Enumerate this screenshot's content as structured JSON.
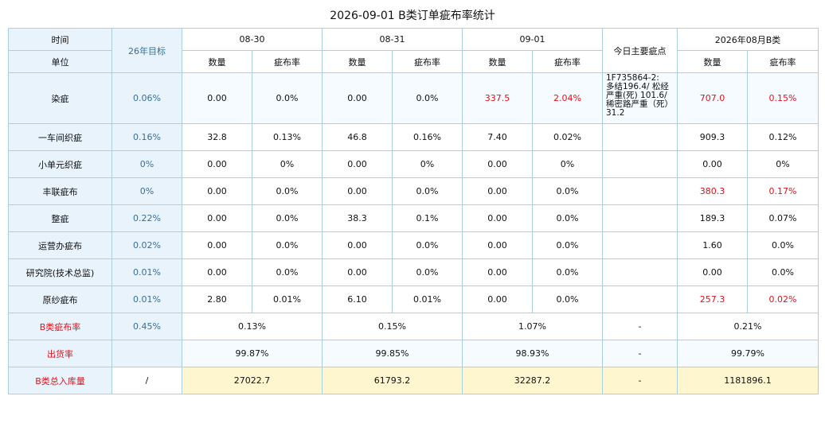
{
  "title": "2026-09-01 B类订单疵布率统计",
  "header": {
    "time": "时间",
    "unit": "单位",
    "target": "26年目标",
    "dates": [
      "08-30",
      "08-31",
      "09-01"
    ],
    "main_defects": "今日主要疵点",
    "month": "2026年08月B类",
    "qty": "数量",
    "rate": "疵布率"
  },
  "rows": [
    {
      "name": "染疵",
      "target": "0.06%",
      "d1q": "0.00",
      "d1r": "0.0%",
      "d2q": "0.00",
      "d2r": "0.0%",
      "d3q": "337.5",
      "d3r": "2.04%",
      "defects": "1F735864-2:\n多结196.4/ 松经\n严重(死) 101.6/\n稀密路严重（死）\n31.2",
      "mq": "707.0",
      "mr": "0.15%"
    },
    {
      "name": "一车间织疵",
      "target": "0.16%",
      "d1q": "32.8",
      "d1r": "0.13%",
      "d2q": "46.8",
      "d2r": "0.16%",
      "d3q": "7.40",
      "d3r": "0.02%",
      "defects": "",
      "mq": "909.3",
      "mr": "0.12%"
    },
    {
      "name": "小单元织疵",
      "target": "0%",
      "d1q": "0.00",
      "d1r": "0%",
      "d2q": "0.00",
      "d2r": "0%",
      "d3q": "0.00",
      "d3r": "0%",
      "defects": "",
      "mq": "0.00",
      "mr": "0%"
    },
    {
      "name": "丰联疵布",
      "target": "0%",
      "d1q": "0.00",
      "d1r": "0.0%",
      "d2q": "0.00",
      "d2r": "0.0%",
      "d3q": "0.00",
      "d3r": "0.0%",
      "defects": "",
      "mq": "380.3",
      "mr": "0.17%"
    },
    {
      "name": "整疵",
      "target": "0.22%",
      "d1q": "0.00",
      "d1r": "0.0%",
      "d2q": "38.3",
      "d2r": "0.1%",
      "d3q": "0.00",
      "d3r": "0.0%",
      "defects": "",
      "mq": "189.3",
      "mr": "0.07%"
    },
    {
      "name": "运营办疵布",
      "target": "0.02%",
      "d1q": "0.00",
      "d1r": "0.0%",
      "d2q": "0.00",
      "d2r": "0.0%",
      "d3q": "0.00",
      "d3r": "0.0%",
      "defects": "",
      "mq": "1.60",
      "mr": "0.0%"
    },
    {
      "name": "研究院(技术总监)",
      "target": "0.01%",
      "d1q": "0.00",
      "d1r": "0.0%",
      "d2q": "0.00",
      "d2r": "0.0%",
      "d3q": "0.00",
      "d3r": "0.0%",
      "defects": "",
      "mq": "0.00",
      "mr": "0.0%"
    },
    {
      "name": "原纱疵布",
      "target": "0.01%",
      "d1q": "2.80",
      "d1r": "0.01%",
      "d2q": "6.10",
      "d2r": "0.01%",
      "d3q": "0.00",
      "d3r": "0.0%",
      "defects": "",
      "mq": "257.3",
      "mr": "0.02%"
    }
  ],
  "summary": [
    {
      "name": "B类疵布率",
      "target": "0.45%",
      "d1": "0.13%",
      "d2": "0.15%",
      "d3": "1.07%",
      "defects": "-",
      "m": "0.21%"
    },
    {
      "name": "出货率",
      "target": "",
      "d1": "99.87%",
      "d2": "99.85%",
      "d3": "98.93%",
      "defects": "-",
      "m": "99.79%"
    },
    {
      "name": "B类总入库量",
      "target": "/",
      "d1": "27022.7",
      "d2": "61793.2",
      "d3": "32287.2",
      "defects": "-",
      "m": "1181896.1"
    }
  ],
  "colors": {
    "highlight_red": "#e0121a",
    "header_bg": "#e8f3fc",
    "border": "#a9cfe0",
    "total_bg": "#fdf6cf"
  }
}
